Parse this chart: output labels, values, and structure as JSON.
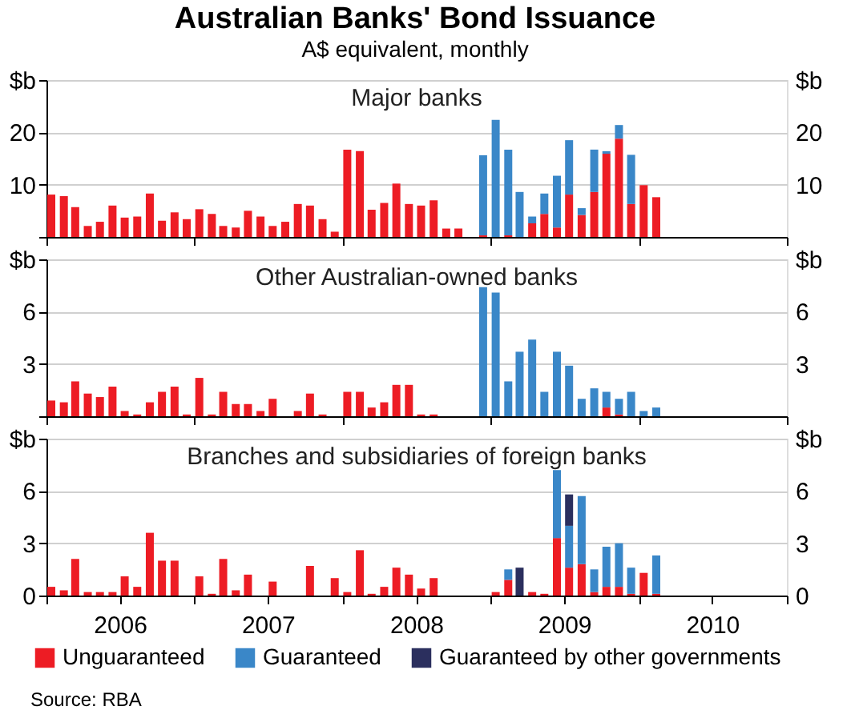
{
  "chart_data": [
    {
      "type": "bar",
      "title": "Major banks",
      "annotations": [
        "Australian Banks' Bond Issuance",
        "A$ equivalent, monthly"
      ],
      "stacked": true,
      "grid": "y",
      "tick_labels": "y",
      "legend": "bottom",
      "x": [
        "2006-01",
        "2006-02",
        "2006-03",
        "2006-04",
        "2006-05",
        "2006-06",
        "2006-07",
        "2006-08",
        "2006-09",
        "2006-10",
        "2006-11",
        "2006-12",
        "2007-01",
        "2007-02",
        "2007-03",
        "2007-04",
        "2007-05",
        "2007-06",
        "2007-07",
        "2007-08",
        "2007-09",
        "2007-10",
        "2007-11",
        "2007-12",
        "2008-01",
        "2008-02",
        "2008-03",
        "2008-04",
        "2008-05",
        "2008-06",
        "2008-07",
        "2008-08",
        "2008-09",
        "2008-10",
        "2008-11",
        "2008-12",
        "2009-01",
        "2009-02",
        "2009-03",
        "2009-04",
        "2009-05",
        "2009-06",
        "2009-07",
        "2009-08",
        "2009-09",
        "2009-10",
        "2009-11",
        "2009-12",
        "2010-01",
        "2010-02"
      ],
      "xlim": [
        "2006-01",
        "2011-01"
      ],
      "xticks": [
        {
          "value": "2006-01",
          "label": null
        },
        {
          "value": "2007-01",
          "label": null
        },
        {
          "value": "2008-01",
          "label": null
        },
        {
          "value": "2009-01",
          "label": null
        },
        {
          "value": "2010-01",
          "label": null
        },
        {
          "value": "2011-01",
          "label": null
        }
      ],
      "ylim": [
        0,
        30
      ],
      "yticks": [
        {
          "value": 0,
          "label": null
        },
        10,
        20,
        {
          "value": 30,
          "label": "$b"
        }
      ],
      "y2lim": [
        0,
        30
      ],
      "y2ticks": [
        {
          "value": 0,
          "label": null
        },
        10,
        20,
        {
          "value": 30,
          "label": "$b"
        }
      ],
      "series": [
        {
          "name": "Unguaranteed",
          "color": "#ed1c24",
          "values": [
            8.1,
            7.8,
            5.7,
            2.1,
            2.9,
            6.0,
            3.7,
            3.9,
            8.3,
            3.1,
            4.7,
            3.4,
            5.3,
            4.4,
            2.1,
            1.8,
            5.0,
            3.9,
            2.1,
            2.9,
            6.3,
            6.0,
            3.4,
            1.0,
            16.7,
            16.4,
            5.2,
            6.5,
            10.2,
            6.3,
            6.0,
            7.0,
            1.6,
            1.6,
            null,
            0.3,
            null,
            0.3,
            null,
            2.6,
            4.4,
            1.8,
            8.1,
            4.2,
            8.6,
            15.9,
            18.8,
            6.3,
            9.9,
            7.6
          ]
        },
        {
          "name": "Guaranteed",
          "color": "#3a87c8",
          "values": [
            null,
            null,
            null,
            null,
            null,
            null,
            null,
            null,
            null,
            null,
            null,
            null,
            null,
            null,
            null,
            null,
            null,
            null,
            null,
            null,
            null,
            null,
            null,
            null,
            null,
            null,
            null,
            null,
            null,
            null,
            null,
            null,
            null,
            null,
            null,
            15.3,
            22.4,
            16.4,
            8.6,
            1.3,
            3.9,
            9.9,
            10.4,
            1.3,
            8.1,
            0.5,
            2.6,
            9.4,
            null,
            null
          ]
        }
      ]
    },
    {
      "type": "bar",
      "title": "Other Australian-owned banks",
      "stacked": true,
      "grid": "y",
      "tick_labels": "y",
      "legend": "bottom",
      "x": [
        "2006-01",
        "2006-02",
        "2006-03",
        "2006-04",
        "2006-05",
        "2006-06",
        "2006-07",
        "2006-08",
        "2006-09",
        "2006-10",
        "2006-11",
        "2006-12",
        "2007-01",
        "2007-02",
        "2007-03",
        "2007-04",
        "2007-05",
        "2007-06",
        "2007-07",
        "2007-08",
        "2007-09",
        "2007-10",
        "2007-11",
        "2007-12",
        "2008-01",
        "2008-02",
        "2008-03",
        "2008-04",
        "2008-05",
        "2008-06",
        "2008-07",
        "2008-08",
        "2008-09",
        "2008-10",
        "2008-11",
        "2008-12",
        "2009-01",
        "2009-02",
        "2009-03",
        "2009-04",
        "2009-05",
        "2009-06",
        "2009-07",
        "2009-08",
        "2009-09",
        "2009-10",
        "2009-11",
        "2009-12",
        "2010-01",
        "2010-02"
      ],
      "xlim": [
        "2006-01",
        "2011-01"
      ],
      "xticks": [
        {
          "value": "2006-01",
          "label": null
        },
        {
          "value": "2007-01",
          "label": null
        },
        {
          "value": "2008-01",
          "label": null
        },
        {
          "value": "2009-01",
          "label": null
        },
        {
          "value": "2010-01",
          "label": null
        },
        {
          "value": "2011-01",
          "label": null
        }
      ],
      "ylim": [
        0,
        9
      ],
      "yticks": [
        {
          "value": 0,
          "label": null
        },
        3,
        6,
        {
          "value": 9,
          "label": "$b"
        }
      ],
      "y2lim": [
        0,
        9
      ],
      "y2ticks": [
        {
          "value": 0,
          "label": null
        },
        3,
        6,
        {
          "value": 9,
          "label": "$b"
        }
      ],
      "series": [
        {
          "name": "Unguaranteed",
          "color": "#ed1c24",
          "values": [
            0.9,
            0.8,
            2.0,
            1.3,
            1.1,
            1.7,
            0.3,
            0.1,
            0.8,
            1.4,
            1.7,
            0.1,
            2.2,
            0.1,
            1.4,
            0.7,
            0.7,
            0.3,
            1.0,
            null,
            0.3,
            1.3,
            0.1,
            null,
            1.4,
            1.4,
            0.5,
            0.8,
            1.8,
            1.8,
            0.1,
            0.1,
            null,
            null,
            null,
            null,
            null,
            null,
            null,
            null,
            null,
            null,
            null,
            null,
            null,
            0.5,
            0.1,
            null,
            null,
            null
          ]
        },
        {
          "name": "Guaranteed",
          "color": "#3a87c8",
          "values": [
            null,
            null,
            null,
            null,
            null,
            null,
            null,
            null,
            null,
            null,
            null,
            null,
            null,
            null,
            null,
            null,
            null,
            null,
            null,
            null,
            null,
            null,
            null,
            null,
            null,
            null,
            null,
            null,
            null,
            null,
            null,
            null,
            null,
            null,
            null,
            7.4,
            7.1,
            2.0,
            3.7,
            4.4,
            1.4,
            3.7,
            2.9,
            1.0,
            1.6,
            0.9,
            0.9,
            1.4,
            0.3,
            0.5
          ]
        }
      ]
    },
    {
      "type": "bar",
      "title": "Branches and subsidiaries of foreign banks",
      "annotations": [
        "Source: RBA"
      ],
      "stacked": true,
      "grid": "y",
      "legend": "bottom",
      "x": [
        "2006-01",
        "2006-02",
        "2006-03",
        "2006-04",
        "2006-05",
        "2006-06",
        "2006-07",
        "2006-08",
        "2006-09",
        "2006-10",
        "2006-11",
        "2006-12",
        "2007-01",
        "2007-02",
        "2007-03",
        "2007-04",
        "2007-05",
        "2007-06",
        "2007-07",
        "2007-08",
        "2007-09",
        "2007-10",
        "2007-11",
        "2007-12",
        "2008-01",
        "2008-02",
        "2008-03",
        "2008-04",
        "2008-05",
        "2008-06",
        "2008-07",
        "2008-08",
        "2008-09",
        "2008-10",
        "2008-11",
        "2008-12",
        "2009-01",
        "2009-02",
        "2009-03",
        "2009-04",
        "2009-05",
        "2009-06",
        "2009-07",
        "2009-08",
        "2009-09",
        "2009-10",
        "2009-11",
        "2009-12",
        "2010-01",
        "2010-02"
      ],
      "xlim": [
        "2006-01",
        "2011-01"
      ],
      "xticks": [
        {
          "value": "2006-01",
          "label": null
        },
        {
          "value": "2006-07",
          "label": "2006"
        },
        {
          "value": "2007-01",
          "label": null
        },
        {
          "value": "2007-07",
          "label": "2007"
        },
        {
          "value": "2008-01",
          "label": null
        },
        {
          "value": "2008-07",
          "label": "2008"
        },
        {
          "value": "2009-01",
          "label": null
        },
        {
          "value": "2009-07",
          "label": "2009"
        },
        {
          "value": "2010-01",
          "label": null
        },
        {
          "value": "2010-07",
          "label": "2010"
        },
        {
          "value": "2011-01",
          "label": null
        }
      ],
      "ylim": [
        0,
        9
      ],
      "yticks": [
        0,
        3,
        6,
        {
          "value": 9,
          "label": "$b"
        }
      ],
      "y2lim": [
        0,
        9
      ],
      "y2ticks": [
        0,
        3,
        6,
        {
          "value": 9,
          "label": "$b"
        }
      ],
      "series": [
        {
          "name": "Unguaranteed",
          "color": "#ed1c24",
          "values": [
            0.5,
            0.3,
            2.1,
            0.2,
            0.2,
            0.2,
            1.1,
            0.5,
            3.6,
            2.0,
            2.0,
            null,
            1.1,
            0.1,
            2.1,
            0.3,
            1.2,
            null,
            0.8,
            null,
            null,
            1.7,
            null,
            1.0,
            0.2,
            2.6,
            0.1,
            0.5,
            1.6,
            1.2,
            0.4,
            1.0,
            null,
            null,
            null,
            null,
            0.2,
            0.9,
            null,
            0.2,
            0.1,
            3.3,
            1.6,
            1.8,
            0.2,
            0.5,
            0.5,
            0.1,
            1.3,
            0.1
          ]
        },
        {
          "name": "Guaranteed",
          "color": "#3a87c8",
          "values": [
            null,
            null,
            null,
            null,
            null,
            null,
            null,
            null,
            null,
            null,
            null,
            null,
            null,
            null,
            null,
            null,
            null,
            null,
            null,
            null,
            null,
            null,
            null,
            null,
            null,
            null,
            null,
            null,
            null,
            null,
            null,
            null,
            null,
            null,
            null,
            null,
            null,
            0.6,
            null,
            null,
            null,
            3.9,
            2.4,
            3.9,
            1.3,
            2.3,
            2.5,
            1.5,
            null,
            2.2
          ]
        },
        {
          "name": "Guaranteed by other governments",
          "color": "#2b2f5e",
          "values": [
            null,
            null,
            null,
            null,
            null,
            null,
            null,
            null,
            null,
            null,
            null,
            null,
            null,
            null,
            null,
            null,
            null,
            null,
            null,
            null,
            null,
            null,
            null,
            null,
            null,
            null,
            null,
            null,
            null,
            null,
            null,
            null,
            null,
            null,
            null,
            null,
            null,
            null,
            1.6,
            null,
            null,
            null,
            1.8,
            null,
            null,
            null,
            null,
            null,
            null,
            null
          ]
        }
      ]
    }
  ]
}
